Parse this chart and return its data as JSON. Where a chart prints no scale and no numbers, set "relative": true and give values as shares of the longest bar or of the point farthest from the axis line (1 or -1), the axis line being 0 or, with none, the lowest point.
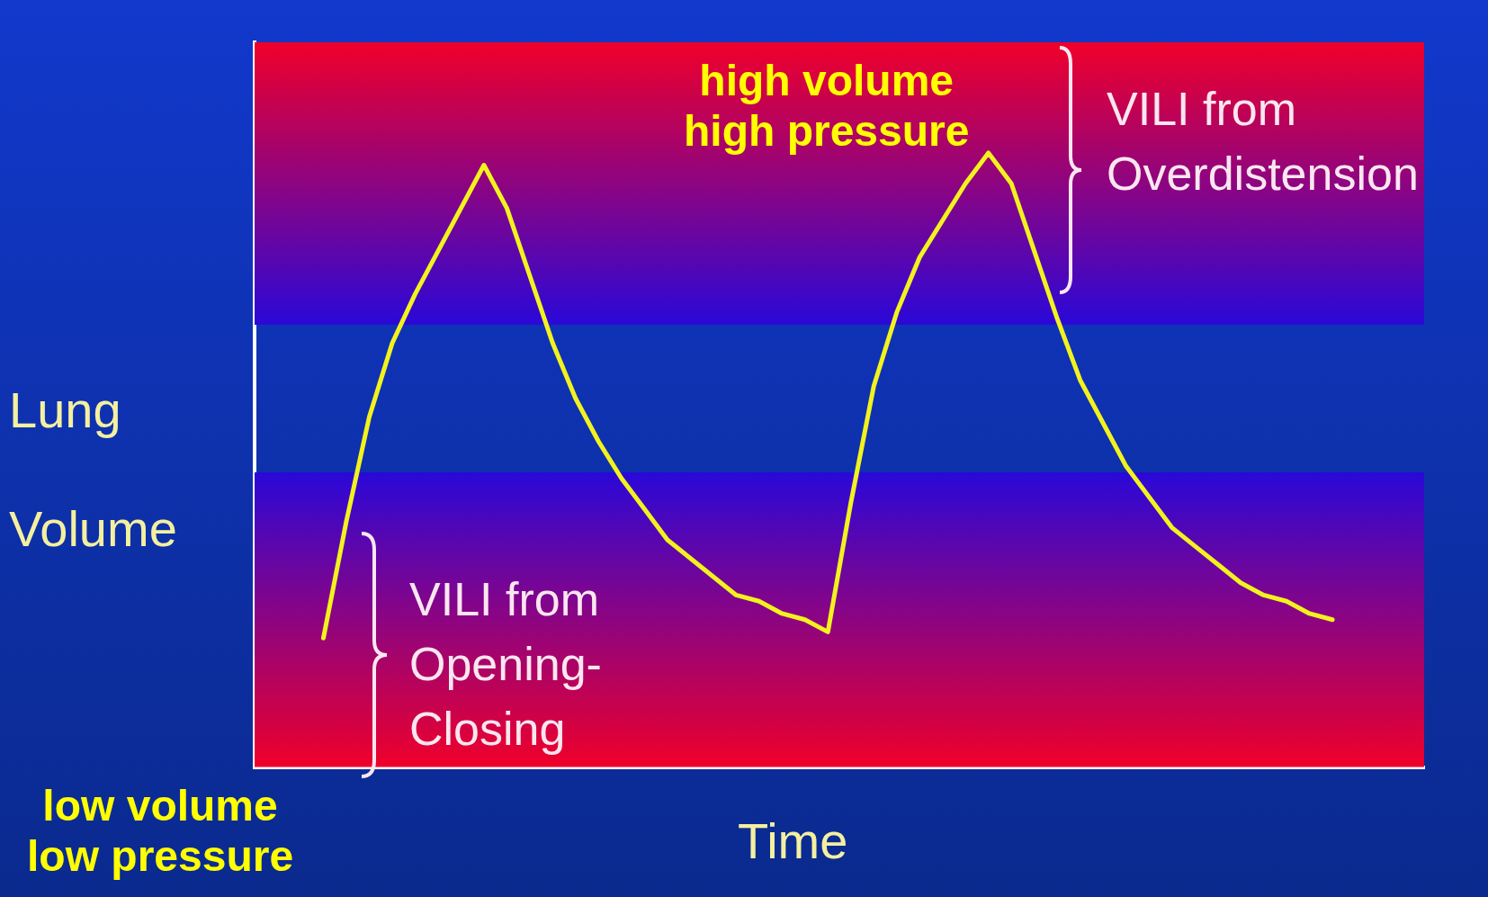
{
  "chart_data": {
    "type": "line",
    "relative": true,
    "xlabel": "Time",
    "ylabel": "Lung\nVolume",
    "grid": false,
    "legend": false,
    "categories": [
      null,
      null,
      null,
      null,
      null,
      null,
      null,
      null,
      null,
      null,
      null,
      null,
      null,
      null,
      null,
      null,
      null,
      null,
      null,
      null,
      null,
      null,
      null,
      null,
      null,
      null,
      null,
      null,
      null,
      null,
      null,
      null,
      null,
      null,
      null,
      null,
      null,
      null,
      null,
      null,
      null,
      null,
      null,
      null,
      null,
      null,
      null,
      null,
      null,
      null,
      null,
      null
    ],
    "series": [
      {
        "color": "#f2f21e",
        "values": [
          null,
          null,
          null,
          0.21,
          0.4,
          0.57,
          0.69,
          0.77,
          0.84,
          0.91,
          0.98,
          0.91,
          0.8,
          0.69,
          0.6,
          0.53,
          0.47,
          0.42,
          0.37,
          0.34,
          0.31,
          0.28,
          0.27,
          0.25,
          0.24,
          0.22,
          0.43,
          0.62,
          0.74,
          0.83,
          0.89,
          0.95,
          1,
          0.95,
          0.84,
          0.73,
          0.63,
          0.56,
          0.49,
          0.44,
          0.39,
          0.36,
          0.33,
          0.3,
          0.28,
          0.27,
          0.25,
          0.24,
          null,
          null,
          null,
          null
        ]
      }
    ],
    "bands": [
      {
        "axis": "y",
        "from": 0.72,
        "to": 1.18,
        "label": "VILI from\nOverdistension",
        "color": "#f0002a"
      },
      {
        "axis": "y",
        "from": 0,
        "to": 0.48,
        "label": "VILI from\nOpening-\nClosing",
        "color": "#f0002a"
      }
    ],
    "annotations": [
      "high volume\nhigh pressure",
      "low volume\nlow pressure"
    ]
  }
}
